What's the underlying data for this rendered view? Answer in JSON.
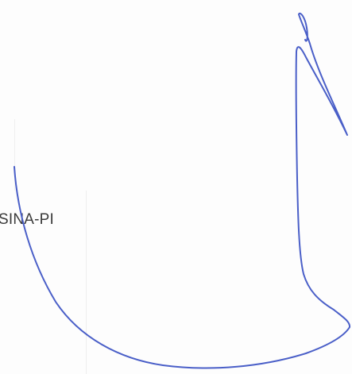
{
  "document": {
    "text_fragment": "SINA-PI"
  },
  "colors": {
    "background": "#fdfdfd",
    "text": "#3a3a3a",
    "ink": "#4a5fc8"
  }
}
